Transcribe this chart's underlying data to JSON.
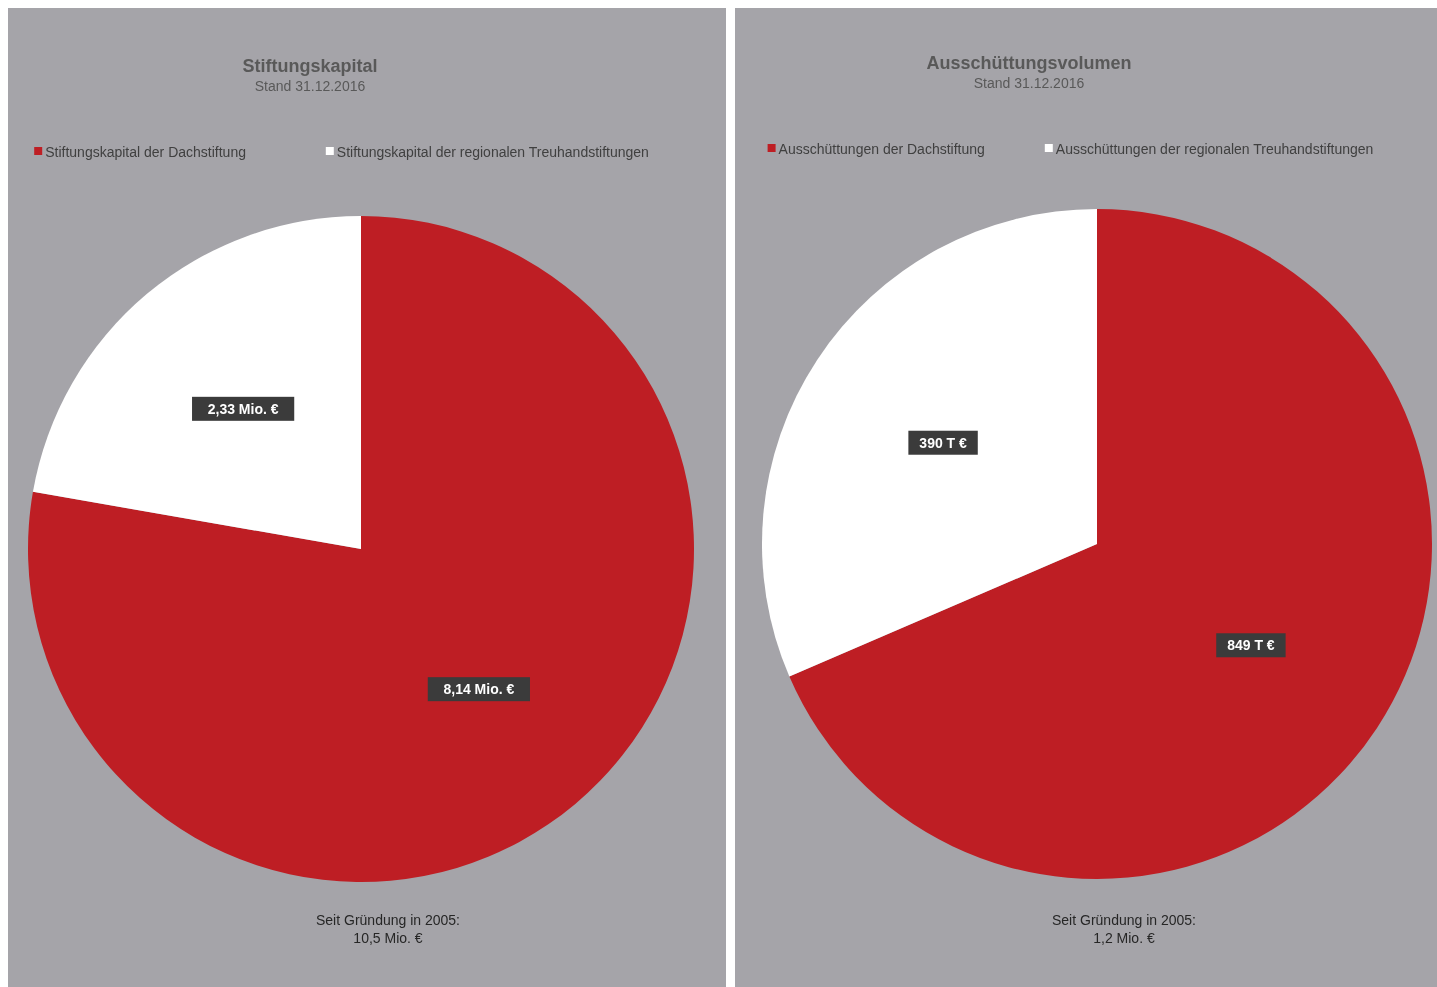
{
  "chart_data": [
    {
      "type": "pie",
      "title": "Stiftungskapital",
      "subtitle": "Stand 31.12.2016",
      "categories": [
        "Stiftungskapital der Dachstiftung",
        "Stiftungskapital der regionalen Treuhandstiftungen"
      ],
      "values": [
        8.14,
        2.33
      ],
      "colors": [
        "#be1e24",
        "#ffffff"
      ],
      "value_labels": [
        "8,14 Mio. €",
        "2,33 Mio. €"
      ],
      "legend": "top",
      "annotations": [
        "Seit Gründung in 2005:",
        "10,5 Mio. €"
      ]
    },
    {
      "type": "pie",
      "title": "Ausschüttungsvolumen",
      "subtitle": "Stand 31.12.2016",
      "categories": [
        "Ausschüttungen der Dachstiftung",
        "Ausschüttungen der regionalen Treuhandstiftungen"
      ],
      "values": [
        849,
        390
      ],
      "colors": [
        "#be1e24",
        "#ffffff"
      ],
      "value_labels": [
        "849 T €",
        "390 T €"
      ],
      "legend": "top",
      "annotations": [
        "Seit Gründung in 2005:",
        "1,2 Mio. €"
      ]
    }
  ]
}
